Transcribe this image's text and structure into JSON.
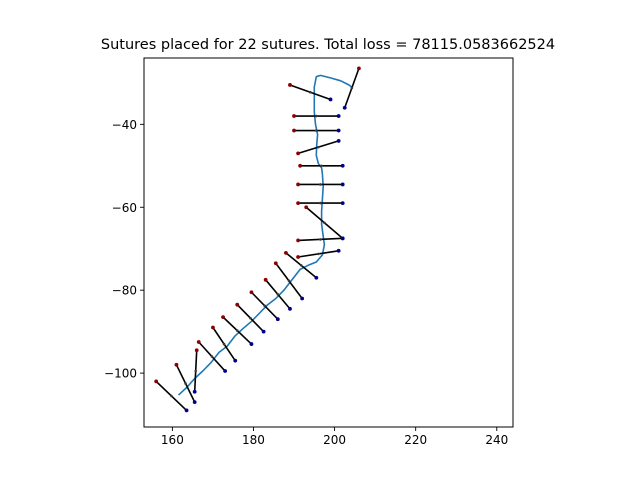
{
  "chart_data": {
    "type": "scatter",
    "title": "Sutures placed for 22 sutures. Total loss = 78115.0583662524",
    "xlabel": "",
    "ylabel": "",
    "xlim": [
      153,
      244
    ],
    "ylim": [
      -113,
      -24
    ],
    "xticks": [
      160,
      180,
      200,
      220,
      240
    ],
    "yticks": [
      -40,
      -60,
      -80,
      -100
    ],
    "grid": false,
    "colors": {
      "wound_line": "#1f77b4",
      "suture": "#000000",
      "insertion_point": "#8b0000",
      "extraction_point": "#00008b",
      "center_point": "#3a3a3a"
    },
    "wound_line": [
      [
        161.5,
        -105.3
      ],
      [
        163.5,
        -103.5
      ],
      [
        165.5,
        -101.3
      ],
      [
        167.5,
        -99.5
      ],
      [
        169.5,
        -97.5
      ],
      [
        171.5,
        -95.0
      ],
      [
        173.5,
        -93.5
      ],
      [
        175.5,
        -91.0
      ],
      [
        177.5,
        -89.2
      ],
      [
        179.5,
        -87.5
      ],
      [
        181.5,
        -85.5
      ],
      [
        183.5,
        -83.5
      ],
      [
        185.5,
        -82.0
      ],
      [
        187.5,
        -80.0
      ],
      [
        189.5,
        -77.5
      ],
      [
        191.5,
        -75.0
      ],
      [
        193.5,
        -74.0
      ],
      [
        195.5,
        -73.2
      ],
      [
        197.0,
        -71.5
      ],
      [
        197.5,
        -69.0
      ],
      [
        197.2,
        -67.0
      ],
      [
        196.8,
        -64.0
      ],
      [
        196.8,
        -61.0
      ],
      [
        197.0,
        -58.0
      ],
      [
        197.2,
        -55.0
      ],
      [
        197.0,
        -52.0
      ],
      [
        196.8,
        -50.5
      ],
      [
        196.0,
        -49.5
      ],
      [
        195.5,
        -47.5
      ],
      [
        195.6,
        -45.0
      ],
      [
        195.8,
        -42.5
      ],
      [
        195.3,
        -40.0
      ],
      [
        195.0,
        -37.0
      ],
      [
        195.0,
        -34.0
      ],
      [
        195.0,
        -31.0
      ],
      [
        195.5,
        -28.5
      ],
      [
        196.5,
        -28.2
      ],
      [
        199.0,
        -28.8
      ],
      [
        201.5,
        -29.5
      ],
      [
        203.5,
        -30.5
      ],
      [
        204.5,
        -31.2
      ]
    ],
    "sutures": [
      {
        "insertion": [
          206.0,
          -26.5
        ],
        "extraction": [
          202.5,
          -36.0
        ]
      },
      {
        "insertion": [
          189.0,
          -30.5
        ],
        "extraction": [
          199.0,
          -34.0
        ]
      },
      {
        "insertion": [
          190.0,
          -38.0
        ],
        "extraction": [
          201.0,
          -38.0
        ]
      },
      {
        "insertion": [
          190.0,
          -41.5
        ],
        "extraction": [
          201.0,
          -41.5
        ]
      },
      {
        "insertion": [
          191.0,
          -47.0
        ],
        "extraction": [
          201.0,
          -44.0
        ]
      },
      {
        "insertion": [
          191.5,
          -50.0
        ],
        "extraction": [
          202.0,
          -50.0
        ]
      },
      {
        "insertion": [
          191.0,
          -54.5
        ],
        "extraction": [
          202.0,
          -54.5
        ]
      },
      {
        "insertion": [
          191.0,
          -59.0
        ],
        "extraction": [
          202.0,
          -59.0
        ]
      },
      {
        "insertion": [
          193.0,
          -60.0
        ],
        "extraction": [
          202.0,
          -67.5
        ]
      },
      {
        "insertion": [
          191.0,
          -68.0
        ],
        "extraction": [
          202.0,
          -67.5
        ]
      },
      {
        "insertion": [
          191.0,
          -72.0
        ],
        "extraction": [
          201.0,
          -70.5
        ]
      },
      {
        "insertion": [
          188.0,
          -71.0
        ],
        "extraction": [
          195.5,
          -77.0
        ]
      },
      {
        "insertion": [
          185.5,
          -73.5
        ],
        "extraction": [
          192.0,
          -82.0
        ]
      },
      {
        "insertion": [
          183.0,
          -77.5
        ],
        "extraction": [
          189.0,
          -84.5
        ]
      },
      {
        "insertion": [
          179.5,
          -80.5
        ],
        "extraction": [
          186.0,
          -87.0
        ]
      },
      {
        "insertion": [
          176.0,
          -83.5
        ],
        "extraction": [
          182.5,
          -90.0
        ]
      },
      {
        "insertion": [
          172.5,
          -86.5
        ],
        "extraction": [
          179.5,
          -93.0
        ]
      },
      {
        "insertion": [
          170.0,
          -89.0
        ],
        "extraction": [
          175.5,
          -97.0
        ]
      },
      {
        "insertion": [
          166.5,
          -92.5
        ],
        "extraction": [
          173.0,
          -99.5
        ]
      },
      {
        "insertion": [
          166.0,
          -94.5
        ],
        "extraction": [
          165.5,
          -104.5
        ]
      },
      {
        "insertion": [
          161.0,
          -98.0
        ],
        "extraction": [
          165.5,
          -107.0
        ]
      },
      {
        "insertion": [
          156.0,
          -102.0
        ],
        "extraction": [
          163.5,
          -109.0
        ]
      }
    ]
  }
}
